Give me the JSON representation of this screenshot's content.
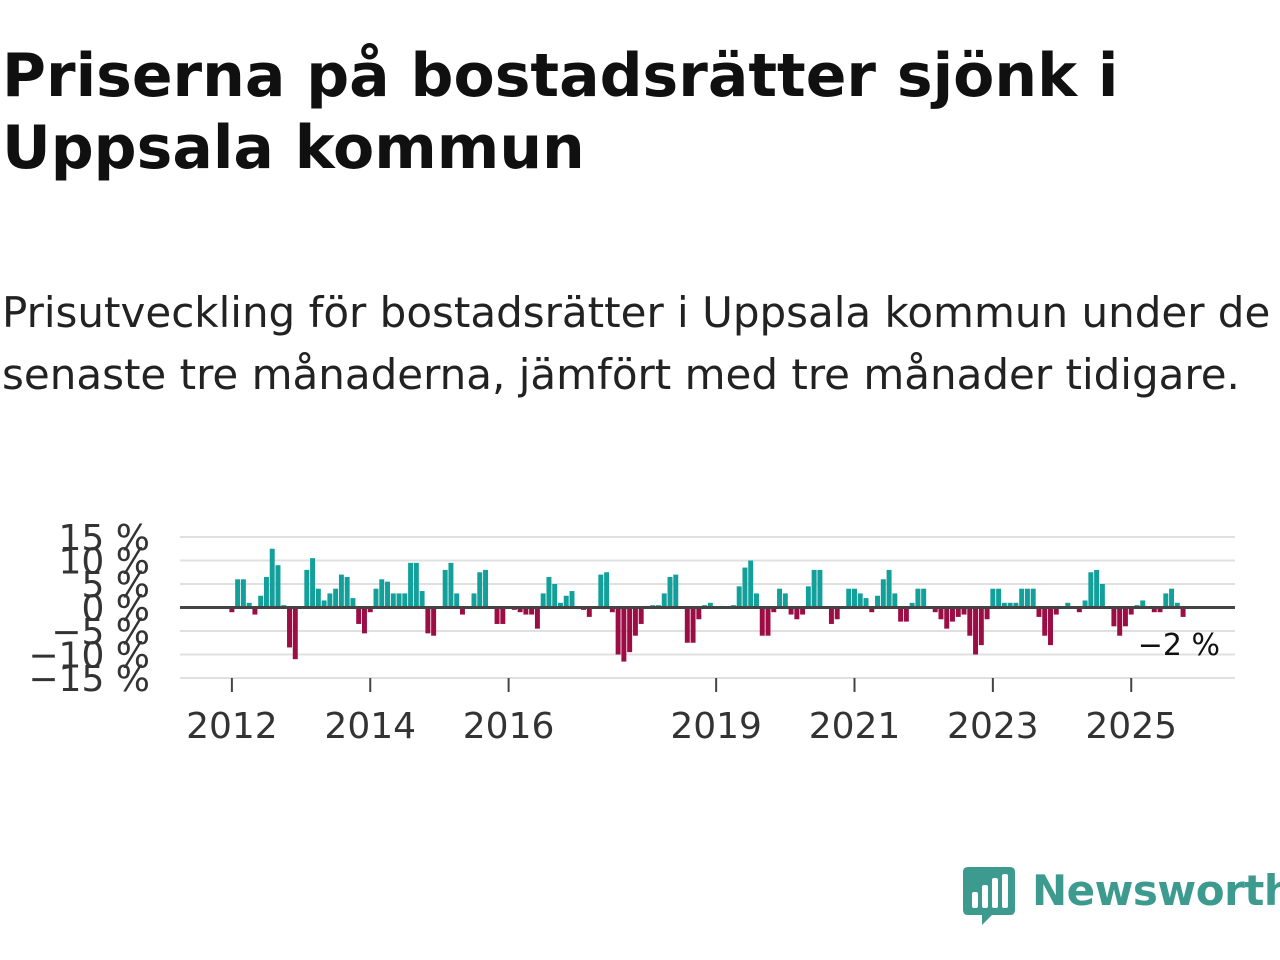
{
  "title": "Priserna på bostadsrätter sjönk i Uppsala kommun",
  "subtitle": "Prisutveckling för bostadsrätter i Uppsala kommun under de senaste tre månaderna, jämfört med tre månader tidigare.",
  "brand": {
    "name": "Newsworthy",
    "color": "#3d9a8f"
  },
  "colors": {
    "positive": "#14a09a",
    "negative": "#9b0d44",
    "grid": "#e0e0e0",
    "zero_line": "#444444"
  },
  "chart_data": {
    "type": "bar",
    "title": "",
    "xlabel": "",
    "ylabel": "",
    "ylim": [
      -15,
      15
    ],
    "y_ticks": [
      -15,
      -10,
      -5,
      0,
      5,
      10,
      15
    ],
    "y_tick_labels": [
      "−15 %",
      "−10 %",
      "−5 %",
      "0 %",
      "5 %",
      "10 %",
      "15 %"
    ],
    "x_ticks": [
      2012,
      2014,
      2016,
      2019,
      2021,
      2023,
      2025
    ],
    "x_tick_labels": [
      "2012",
      "2014",
      "2016",
      "2019",
      "2021",
      "2023",
      "2025"
    ],
    "x_start": 2011.333,
    "x_step": 0.0833333,
    "x_range": [
      2011.25,
      2026.5
    ],
    "last_value_label": "−2 %",
    "series": [
      {
        "name": "Prisutveckling",
        "values": [
          0,
          0,
          0,
          0,
          0,
          0,
          0,
          0,
          -1,
          6,
          6,
          1,
          -1.5,
          2.5,
          6.5,
          12.5,
          9,
          0.5,
          -8.5,
          -11,
          0,
          8,
          10.5,
          4,
          1.5,
          3,
          4,
          7,
          6.5,
          2,
          -3.5,
          -5.5,
          -1,
          4,
          6,
          5.5,
          3,
          3,
          3,
          9.5,
          9.5,
          3.5,
          -5.5,
          -6,
          0,
          8,
          9.5,
          3,
          -1.5,
          0,
          3,
          7.5,
          8,
          0,
          -3.5,
          -3.5,
          0,
          -0.5,
          -1,
          -1.5,
          -1.5,
          -4.5,
          3,
          6.5,
          5,
          1,
          2.5,
          3.5,
          0,
          -0.5,
          -2,
          0,
          7,
          7.5,
          -1,
          -10,
          -11.5,
          -9.5,
          -6,
          -3.5,
          0,
          0.5,
          0.5,
          3,
          6.5,
          7,
          0,
          -7.5,
          -7.5,
          -2.5,
          0.5,
          1,
          0,
          0,
          0,
          0.5,
          4.5,
          8.5,
          10,
          3,
          -6,
          -6,
          -1,
          4,
          3,
          -1.5,
          -2.5,
          -1.5,
          4.5,
          8,
          8,
          0,
          -3.5,
          -2.5,
          0,
          4,
          4,
          3,
          2,
          -1,
          2.5,
          6,
          8,
          3,
          -3,
          -3,
          1,
          4,
          4,
          0,
          -1,
          -2.5,
          -4.5,
          -3,
          -2,
          -1.5,
          -6,
          -10,
          -8,
          -2.5,
          4,
          4,
          1,
          1,
          1,
          4,
          4,
          4,
          -2,
          -6,
          -8,
          -1.5,
          0,
          1,
          0,
          -1,
          1.5,
          7.5,
          8,
          5,
          0,
          -4,
          -6,
          -4,
          -1.5,
          0.5,
          1.5,
          0,
          -1,
          -1,
          3,
          4,
          1,
          -2
        ]
      }
    ]
  }
}
